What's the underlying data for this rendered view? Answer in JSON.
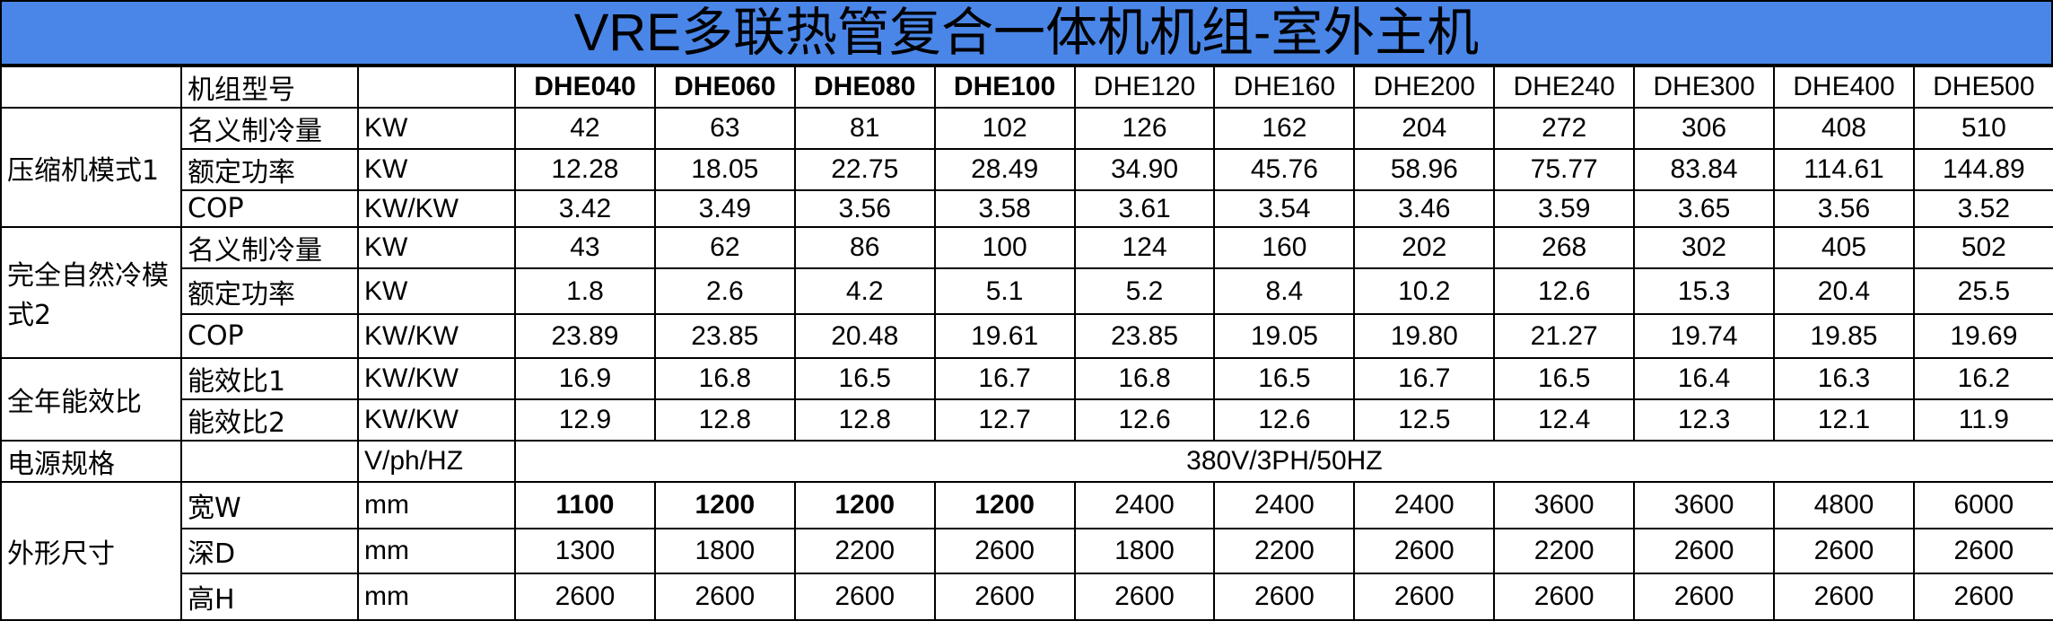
{
  "title": "VRE多联热管复合一体机机组-室外主机",
  "header": {
    "label": "机组型号",
    "models": [
      "DHE040",
      "DHE060",
      "DHE080",
      "DHE100",
      "DHE120",
      "DHE160",
      "DHE200",
      "DHE240",
      "DHE300",
      "DHE400",
      "DHE500"
    ]
  },
  "groups": [
    {
      "name": "压缩机模式1",
      "rows": [
        {
          "param": "名义制冷量",
          "unit": "KW",
          "values": [
            "42",
            "63",
            "81",
            "102",
            "126",
            "162",
            "204",
            "272",
            "306",
            "408",
            "510"
          ]
        },
        {
          "param": "额定功率",
          "unit": "KW",
          "values": [
            "12.28",
            "18.05",
            "22.75",
            "28.49",
            "34.90",
            "45.76",
            "58.96",
            "75.77",
            "83.84",
            "114.61",
            "144.89"
          ]
        },
        {
          "param": "COP",
          "unit": "KW/KW",
          "values": [
            "3.42",
            "3.49",
            "3.56",
            "3.58",
            "3.61",
            "3.54",
            "3.46",
            "3.59",
            "3.65",
            "3.56",
            "3.52"
          ]
        }
      ]
    },
    {
      "name": "完全自然冷模式2",
      "rows": [
        {
          "param": "名义制冷量",
          "unit": "KW",
          "values": [
            "43",
            "62",
            "86",
            "100",
            "124",
            "160",
            "202",
            "268",
            "302",
            "405",
            "502"
          ]
        },
        {
          "param": "额定功率",
          "unit": "KW",
          "values": [
            "1.8",
            "2.6",
            "4.2",
            "5.1",
            "5.2",
            "8.4",
            "10.2",
            "12.6",
            "15.3",
            "20.4",
            "25.5"
          ]
        },
        {
          "param": "COP",
          "unit": "KW/KW",
          "values": [
            "23.89",
            "23.85",
            "20.48",
            "19.61",
            "23.85",
            "19.05",
            "19.80",
            "21.27",
            "19.74",
            "19.85",
            "19.69"
          ]
        }
      ]
    },
    {
      "name": "全年能效比",
      "rows": [
        {
          "param": "能效比1",
          "unit": "KW/KW",
          "values": [
            "16.9",
            "16.8",
            "16.5",
            "16.7",
            "16.8",
            "16.5",
            "16.7",
            "16.5",
            "16.4",
            "16.3",
            "16.2"
          ]
        },
        {
          "param": "能效比2",
          "unit": "KW/KW",
          "values": [
            "12.9",
            "12.8",
            "12.8",
            "12.7",
            "12.6",
            "12.6",
            "12.5",
            "12.4",
            "12.3",
            "12.1",
            "11.9"
          ]
        }
      ]
    },
    {
      "name": "电源规格",
      "rows": [
        {
          "unit": "V/ph/HZ",
          "value": "380V/3PH/50HZ"
        }
      ]
    },
    {
      "name": "外形尺寸",
      "rows": [
        {
          "param": "宽W",
          "unit": "mm",
          "values": [
            "1100",
            "1200",
            "1200",
            "1200",
            "2400",
            "2400",
            "2400",
            "3600",
            "3600",
            "4800",
            "6000"
          ]
        },
        {
          "param": "深D",
          "unit": "mm",
          "values": [
            "1300",
            "1800",
            "2200",
            "2600",
            "1800",
            "2200",
            "2600",
            "2200",
            "2600",
            "2600",
            "2600"
          ]
        },
        {
          "param": "高H",
          "unit": "mm",
          "values": [
            "2600",
            "2600",
            "2600",
            "2600",
            "2600",
            "2600",
            "2600",
            "2600",
            "2600",
            "2600",
            "2600"
          ]
        }
      ]
    }
  ]
}
